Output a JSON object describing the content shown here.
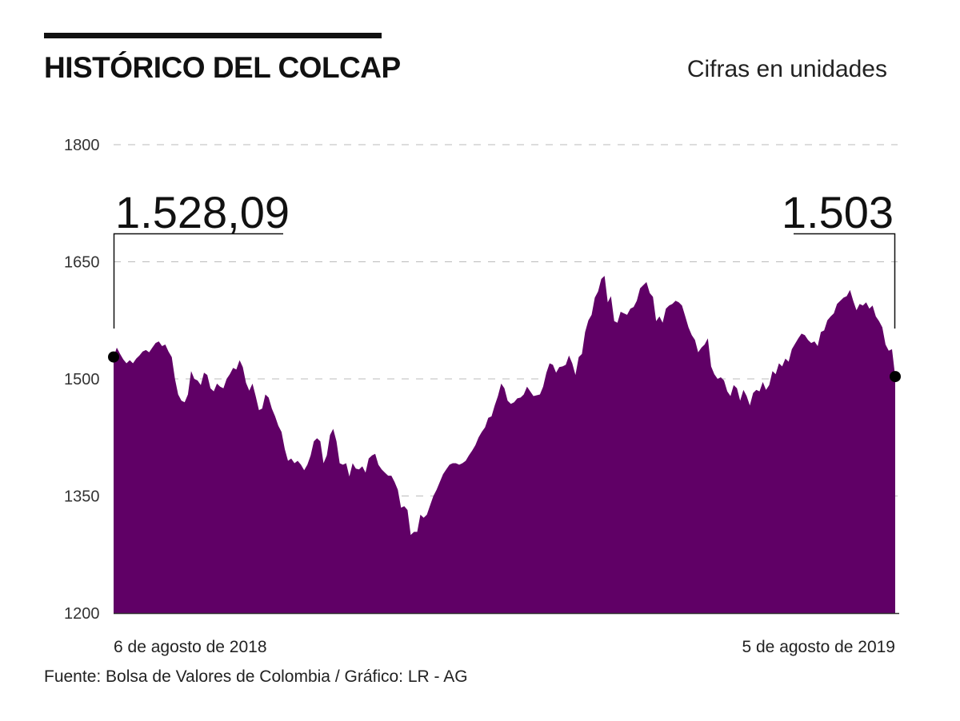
{
  "header": {
    "title": "HISTÓRICO DEL COLCAP",
    "units_note": "Cifras en unidades"
  },
  "footer": {
    "source": "Fuente: Bolsa de Valores de Colombia / Gráfico: LR - AG"
  },
  "colors": {
    "area_fill": "#600066",
    "grid": "#bbbbbb",
    "axis": "#333333",
    "marker": "#000000"
  },
  "chart_data": {
    "type": "area",
    "title": "HISTÓRICO DEL COLCAP",
    "subtitle": "Cifras en unidades",
    "xlabel": "",
    "ylabel": "",
    "ylim": [
      1200,
      1800
    ],
    "yticks": [
      1200,
      1350,
      1500,
      1650,
      1800
    ],
    "ytick_labels": [
      "1200",
      "1350",
      "1500",
      "1650",
      "1800"
    ],
    "grid": true,
    "x_start_label": "6 de agosto de 2018",
    "x_end_label": "5 de agosto de 2019",
    "start_value_label": "1.528,09",
    "end_value_label": "1.503",
    "start_value": 1528.09,
    "end_value": 1503,
    "values": [
      1528,
      1540,
      1532,
      1525,
      1520,
      1524,
      1520,
      1526,
      1530,
      1535,
      1537,
      1534,
      1540,
      1546,
      1548,
      1542,
      1544,
      1535,
      1528,
      1500,
      1480,
      1472,
      1470,
      1480,
      1510,
      1500,
      1498,
      1492,
      1508,
      1505,
      1488,
      1484,
      1494,
      1490,
      1488,
      1500,
      1506,
      1514,
      1512,
      1524,
      1515,
      1495,
      1485,
      1494,
      1478,
      1460,
      1462,
      1480,
      1476,
      1462,
      1452,
      1440,
      1432,
      1410,
      1395,
      1398,
      1392,
      1395,
      1390,
      1383,
      1390,
      1402,
      1420,
      1424,
      1420,
      1392,
      1402,
      1428,
      1436,
      1420,
      1392,
      1390,
      1392,
      1375,
      1392,
      1385,
      1384,
      1388,
      1380,
      1398,
      1402,
      1404,
      1390,
      1384,
      1380,
      1376,
      1376,
      1368,
      1358,
      1335,
      1337,
      1332,
      1300,
      1304,
      1304,
      1326,
      1322,
      1326,
      1338,
      1350,
      1358,
      1368,
      1378,
      1384,
      1390,
      1392,
      1392,
      1390,
      1392,
      1395,
      1402,
      1408,
      1415,
      1425,
      1432,
      1438,
      1450,
      1452,
      1466,
      1478,
      1494,
      1488,
      1472,
      1468,
      1470,
      1475,
      1476,
      1480,
      1490,
      1484,
      1478,
      1479,
      1480,
      1490,
      1508,
      1520,
      1518,
      1508,
      1515,
      1516,
      1518,
      1530,
      1520,
      1505,
      1528,
      1532,
      1560,
      1575,
      1582,
      1604,
      1612,
      1628,
      1632,
      1598,
      1606,
      1574,
      1572,
      1586,
      1584,
      1582,
      1590,
      1592,
      1600,
      1616,
      1620,
      1624,
      1610,
      1605,
      1574,
      1580,
      1572,
      1590,
      1594,
      1596,
      1600,
      1598,
      1594,
      1580,
      1566,
      1556,
      1550,
      1534,
      1540,
      1544,
      1552,
      1516,
      1506,
      1500,
      1502,
      1498,
      1484,
      1478,
      1492,
      1488,
      1472,
      1486,
      1478,
      1466,
      1482,
      1486,
      1484,
      1496,
      1486,
      1492,
      1510,
      1506,
      1520,
      1516,
      1526,
      1522,
      1538,
      1545,
      1552,
      1558,
      1556,
      1550,
      1546,
      1548,
      1542,
      1560,
      1562,
      1575,
      1580,
      1584,
      1596,
      1600,
      1604,
      1606,
      1614,
      1600,
      1588,
      1596,
      1594,
      1598,
      1590,
      1594,
      1580,
      1574,
      1566,
      1544,
      1536,
      1538,
      1503
    ]
  }
}
